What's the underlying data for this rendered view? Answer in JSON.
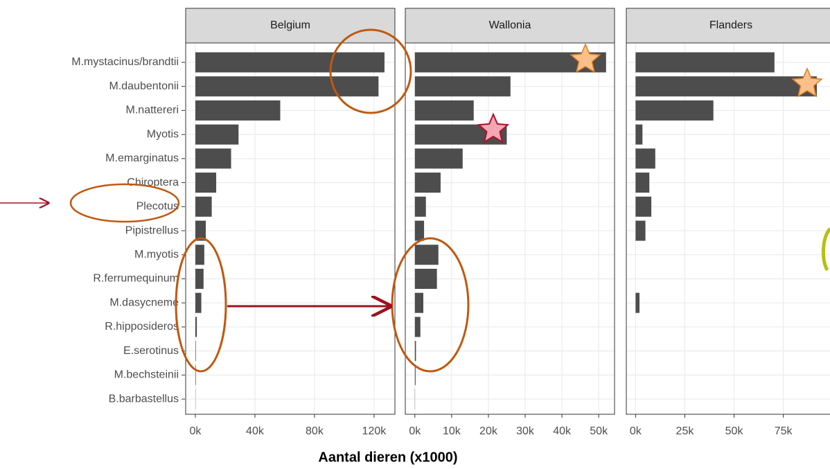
{
  "chart_data": {
    "type": "bar",
    "orientation": "horizontal",
    "color": "#4d4d4d",
    "grid": true,
    "xlabel": "Aantal dieren (x1000)",
    "categories": [
      "M.mystacinus/brandtii",
      "M.daubentonii",
      "M.nattereri",
      "Myotis",
      "M.emarginatus",
      "Chiroptera",
      "Plecotus",
      "Pipistrellus",
      "M.myotis",
      "R.ferrumequinum",
      "M.dasycneme",
      "R.hipposideros",
      "E.serotinus",
      "M.bechsteinii",
      "B.barbastellus"
    ],
    "facets": [
      {
        "title": "Belgium",
        "values": [
          127,
          123,
          57,
          29,
          24,
          14,
          11,
          7,
          6,
          5.5,
          4,
          1,
          0.3,
          0.3,
          0.1
        ],
        "xlim": [
          -6.5,
          134
        ],
        "xticks": [
          {
            "value": 0,
            "label": "0k"
          },
          {
            "value": 40,
            "label": "40k"
          },
          {
            "value": 80,
            "label": "80k"
          },
          {
            "value": 120,
            "label": "120k"
          }
        ]
      },
      {
        "title": "Wallonia",
        "values": [
          52,
          26,
          16,
          25,
          13,
          7,
          3,
          2.5,
          6.4,
          6,
          2.3,
          1.5,
          0.3,
          0.2,
          0.05
        ],
        "xlim": [
          -2.6,
          54.3
        ],
        "xticks": [
          {
            "value": 0,
            "label": "0k"
          },
          {
            "value": 10,
            "label": "10k"
          },
          {
            "value": 20,
            "label": "20k"
          },
          {
            "value": 30,
            "label": "30k"
          },
          {
            "value": 40,
            "label": "40k"
          },
          {
            "value": 50,
            "label": "50k"
          }
        ]
      },
      {
        "title": "Flanders",
        "values": [
          70.5,
          92,
          39.5,
          3.5,
          10,
          7,
          8,
          5,
          0,
          0,
          2,
          0,
          0,
          0,
          0
        ],
        "xlim": [
          -4.7,
          101.5
        ],
        "xticks": [
          {
            "value": 0,
            "label": "0k"
          },
          {
            "value": 25,
            "label": "25k"
          },
          {
            "value": 50,
            "label": "50k"
          },
          {
            "value": 75,
            "label": "75k"
          }
        ]
      }
    ]
  }
}
